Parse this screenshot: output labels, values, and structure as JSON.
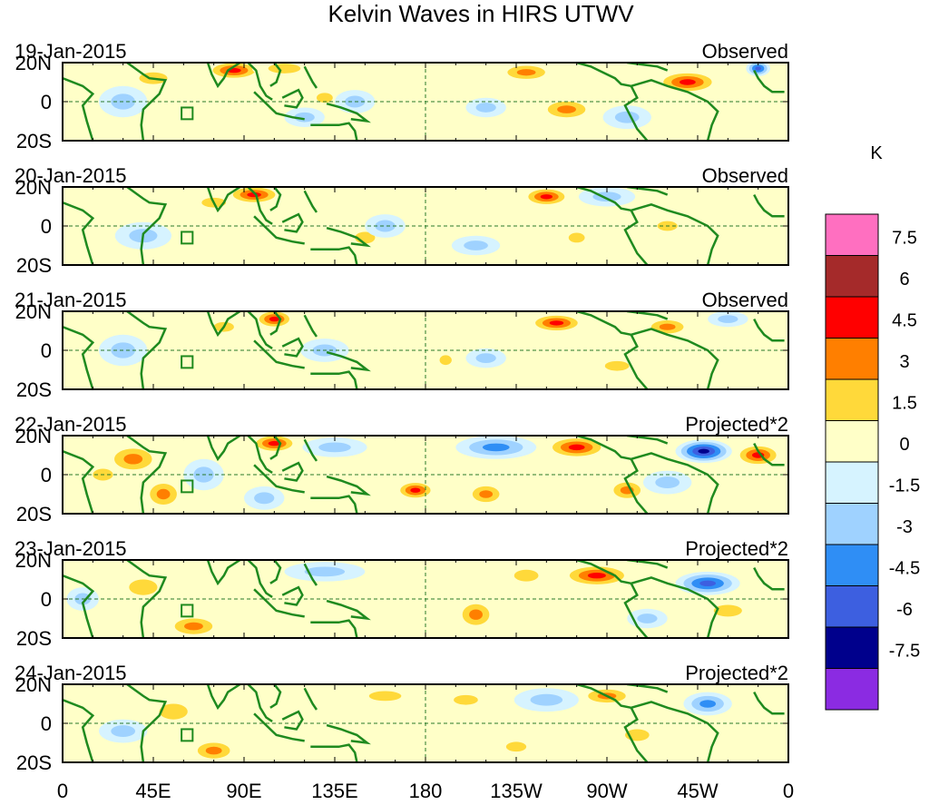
{
  "chart_data": {
    "type": "heatmap",
    "title": "Kelvin Waves in HIRS UTWV",
    "colorbar": {
      "units": "K",
      "tick_labels": [
        "7.5",
        "6",
        "4.5",
        "3",
        "1.5",
        "0",
        "-1.5",
        "-3",
        "-4.5",
        "-6",
        "-7.5"
      ],
      "colors": [
        "#ff6fc0",
        "#a52a2a",
        "#ff0000",
        "#ff7f00",
        "#ffd93a",
        "#ffffc8",
        "#d6f3ff",
        "#9fd2ff",
        "#2f8ef5",
        "#3d5fe0",
        "#00008c",
        "#8b2be2"
      ]
    },
    "x_tick_labels": [
      "0",
      "45E",
      "90E",
      "135E",
      "180",
      "135W",
      "90W",
      "45W",
      "0"
    ],
    "y_tick_labels": [
      "20N",
      "0",
      "20S"
    ],
    "x_range": [
      0,
      360
    ],
    "y_range": [
      -20,
      20
    ],
    "panels": [
      {
        "date": "19-Jan-2015",
        "label": "Observed",
        "features": [
          {
            "lon": 45,
            "lat": 12,
            "rx": 14,
            "ry": 6,
            "value": 2
          },
          {
            "lon": 85,
            "lat": 16,
            "rx": 14,
            "ry": 5,
            "value": 5
          },
          {
            "lon": 110,
            "lat": 17,
            "rx": 16,
            "ry": 5,
            "value": 3
          },
          {
            "lon": 120,
            "lat": -8,
            "rx": 10,
            "ry": 5,
            "value": -3
          },
          {
            "lon": 130,
            "lat": 2,
            "rx": 8,
            "ry": 5,
            "value": 3
          },
          {
            "lon": 145,
            "lat": 0,
            "rx": 10,
            "ry": 6,
            "value": -2
          },
          {
            "lon": 30,
            "lat": 0,
            "rx": 12,
            "ry": 8,
            "value": -2
          },
          {
            "lon": 210,
            "lat": -3,
            "rx": 10,
            "ry": 5,
            "value": -3
          },
          {
            "lon": 230,
            "lat": 15,
            "rx": 14,
            "ry": 5,
            "value": 4
          },
          {
            "lon": 250,
            "lat": -4,
            "rx": 14,
            "ry": 6,
            "value": 4
          },
          {
            "lon": 310,
            "lat": 10,
            "rx": 16,
            "ry": 6,
            "value": 5
          },
          {
            "lon": 280,
            "lat": -8,
            "rx": 12,
            "ry": 6,
            "value": -2
          },
          {
            "lon": 345,
            "lat": 17,
            "rx": 6,
            "ry": 4,
            "value": -6
          }
        ]
      },
      {
        "date": "20-Jan-2015",
        "label": "Observed",
        "features": [
          {
            "lon": 95,
            "lat": 16,
            "rx": 14,
            "ry": 5,
            "value": 5
          },
          {
            "lon": 75,
            "lat": 12,
            "rx": 12,
            "ry": 5,
            "value": 3
          },
          {
            "lon": 150,
            "lat": -6,
            "rx": 10,
            "ry": 6,
            "value": 3
          },
          {
            "lon": 160,
            "lat": 0,
            "rx": 10,
            "ry": 6,
            "value": -2
          },
          {
            "lon": 40,
            "lat": -5,
            "rx": 14,
            "ry": 7,
            "value": -2
          },
          {
            "lon": 240,
            "lat": 15,
            "rx": 12,
            "ry": 5,
            "value": 5
          },
          {
            "lon": 270,
            "lat": 15,
            "rx": 14,
            "ry": 5,
            "value": -3
          },
          {
            "lon": 205,
            "lat": -10,
            "rx": 12,
            "ry": 5,
            "value": -3
          },
          {
            "lon": 255,
            "lat": -6,
            "rx": 8,
            "ry": 5,
            "value": 2
          },
          {
            "lon": 300,
            "lat": 0,
            "rx": 10,
            "ry": 5,
            "value": 2
          }
        ]
      },
      {
        "date": "21-Jan-2015",
        "label": "Observed",
        "features": [
          {
            "lon": 105,
            "lat": 16,
            "rx": 10,
            "ry": 5,
            "value": 5
          },
          {
            "lon": 80,
            "lat": 12,
            "rx": 10,
            "ry": 5,
            "value": 3
          },
          {
            "lon": 30,
            "lat": 0,
            "rx": 12,
            "ry": 8,
            "value": -2
          },
          {
            "lon": 130,
            "lat": 0,
            "rx": 12,
            "ry": 6,
            "value": -2
          },
          {
            "lon": 245,
            "lat": 14,
            "rx": 14,
            "ry": 5,
            "value": 5
          },
          {
            "lon": 300,
            "lat": 12,
            "rx": 12,
            "ry": 5,
            "value": 4
          },
          {
            "lon": 210,
            "lat": -4,
            "rx": 10,
            "ry": 5,
            "value": -2
          },
          {
            "lon": 190,
            "lat": -5,
            "rx": 6,
            "ry": 5,
            "value": 2
          },
          {
            "lon": 275,
            "lat": -8,
            "rx": 12,
            "ry": 5,
            "value": 2
          },
          {
            "lon": 330,
            "lat": 16,
            "rx": 10,
            "ry": 4,
            "value": -2
          }
        ]
      },
      {
        "date": "22-Jan-2015",
        "label": "Projected*2",
        "features": [
          {
            "lon": 35,
            "lat": 8,
            "rx": 14,
            "ry": 8,
            "value": 4
          },
          {
            "lon": 50,
            "lat": -10,
            "rx": 10,
            "ry": 8,
            "value": 4
          },
          {
            "lon": 20,
            "lat": 0,
            "rx": 10,
            "ry": 6,
            "value": 3
          },
          {
            "lon": 70,
            "lat": 0,
            "rx": 10,
            "ry": 8,
            "value": -2
          },
          {
            "lon": 100,
            "lat": -12,
            "rx": 10,
            "ry": 6,
            "value": -3
          },
          {
            "lon": 105,
            "lat": 16,
            "rx": 12,
            "ry": 5,
            "value": 6
          },
          {
            "lon": 135,
            "lat": 14,
            "rx": 16,
            "ry": 5,
            "value": -2
          },
          {
            "lon": 175,
            "lat": -8,
            "rx": 10,
            "ry": 5,
            "value": 5
          },
          {
            "lon": 210,
            "lat": -10,
            "rx": 10,
            "ry": 6,
            "value": 4
          },
          {
            "lon": 215,
            "lat": 14,
            "rx": 20,
            "ry": 6,
            "value": -4
          },
          {
            "lon": 255,
            "lat": 14,
            "rx": 16,
            "ry": 6,
            "value": 5
          },
          {
            "lon": 318,
            "lat": 12,
            "rx": 14,
            "ry": 6,
            "value": -7
          },
          {
            "lon": 345,
            "lat": 10,
            "rx": 12,
            "ry": 6,
            "value": 5
          },
          {
            "lon": 280,
            "lat": -8,
            "rx": 10,
            "ry": 6,
            "value": 4
          },
          {
            "lon": 300,
            "lat": -4,
            "rx": 12,
            "ry": 6,
            "value": -2
          }
        ]
      },
      {
        "date": "23-Jan-2015",
        "label": "Projected*2",
        "features": [
          {
            "lon": 40,
            "lat": 6,
            "rx": 14,
            "ry": 8,
            "value": 3
          },
          {
            "lon": 65,
            "lat": -14,
            "rx": 14,
            "ry": 6,
            "value": 4
          },
          {
            "lon": 10,
            "lat": 0,
            "rx": 8,
            "ry": 6,
            "value": -2
          },
          {
            "lon": 130,
            "lat": 14,
            "rx": 20,
            "ry": 5,
            "value": -2
          },
          {
            "lon": 205,
            "lat": -8,
            "rx": 10,
            "ry": 8,
            "value": 4
          },
          {
            "lon": 230,
            "lat": 12,
            "rx": 12,
            "ry": 6,
            "value": 2
          },
          {
            "lon": 265,
            "lat": 12,
            "rx": 18,
            "ry": 6,
            "value": 5
          },
          {
            "lon": 320,
            "lat": 8,
            "rx": 16,
            "ry": 6,
            "value": -5
          },
          {
            "lon": 330,
            "lat": -6,
            "rx": 14,
            "ry": 6,
            "value": 2
          },
          {
            "lon": 290,
            "lat": -10,
            "rx": 10,
            "ry": 5,
            "value": -2
          }
        ]
      },
      {
        "date": "24-Jan-2015",
        "label": "Projected*2",
        "features": [
          {
            "lon": 55,
            "lat": 6,
            "rx": 14,
            "ry": 8,
            "value": 3
          },
          {
            "lon": 75,
            "lat": -14,
            "rx": 12,
            "ry": 6,
            "value": 4
          },
          {
            "lon": 160,
            "lat": 14,
            "rx": 16,
            "ry": 5,
            "value": 3
          },
          {
            "lon": 200,
            "lat": 12,
            "rx": 12,
            "ry": 5,
            "value": 3
          },
          {
            "lon": 240,
            "lat": 12,
            "rx": 16,
            "ry": 6,
            "value": -3
          },
          {
            "lon": 270,
            "lat": 14,
            "rx": 14,
            "ry": 5,
            "value": 4
          },
          {
            "lon": 320,
            "lat": 10,
            "rx": 12,
            "ry": 6,
            "value": -4
          },
          {
            "lon": 225,
            "lat": -12,
            "rx": 10,
            "ry": 5,
            "value": 3
          },
          {
            "lon": 30,
            "lat": -4,
            "rx": 12,
            "ry": 6,
            "value": -2
          },
          {
            "lon": 285,
            "lat": -6,
            "rx": 12,
            "ry": 6,
            "value": 2
          }
        ]
      }
    ]
  }
}
